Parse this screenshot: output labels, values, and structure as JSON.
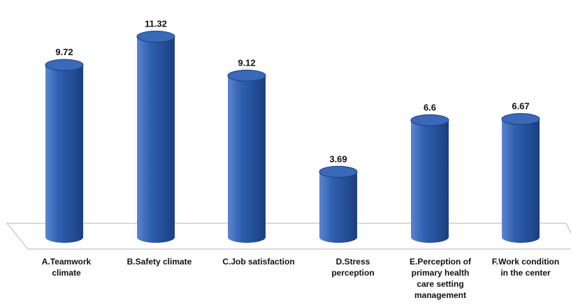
{
  "chart_data": {
    "type": "bar",
    "title": "",
    "xlabel": "",
    "ylabel": "",
    "categories": [
      "A.Teamwork\nclimate",
      "B.Safety climate",
      "C.Job satisfaction",
      "D.Stress\nperception",
      "E.Perception of\nprimary health\ncare setting\nmanagement",
      "F.Work condition\nin the center"
    ],
    "values": [
      9.72,
      11.32,
      9.12,
      3.69,
      6.6,
      6.67
    ],
    "value_labels": [
      "9.72",
      "11.32",
      "9.12",
      "3.69",
      "6.6",
      "6.67"
    ],
    "ylim": [
      0,
      12
    ],
    "grid": false,
    "legend": "none",
    "colors": {
      "bar_light": "#5b86cf",
      "bar_mid": "#2f5fb0",
      "bar_dark": "#1a3f80",
      "bar_top": "#3a69b8",
      "floor_stroke": "#b5b5b5"
    }
  }
}
